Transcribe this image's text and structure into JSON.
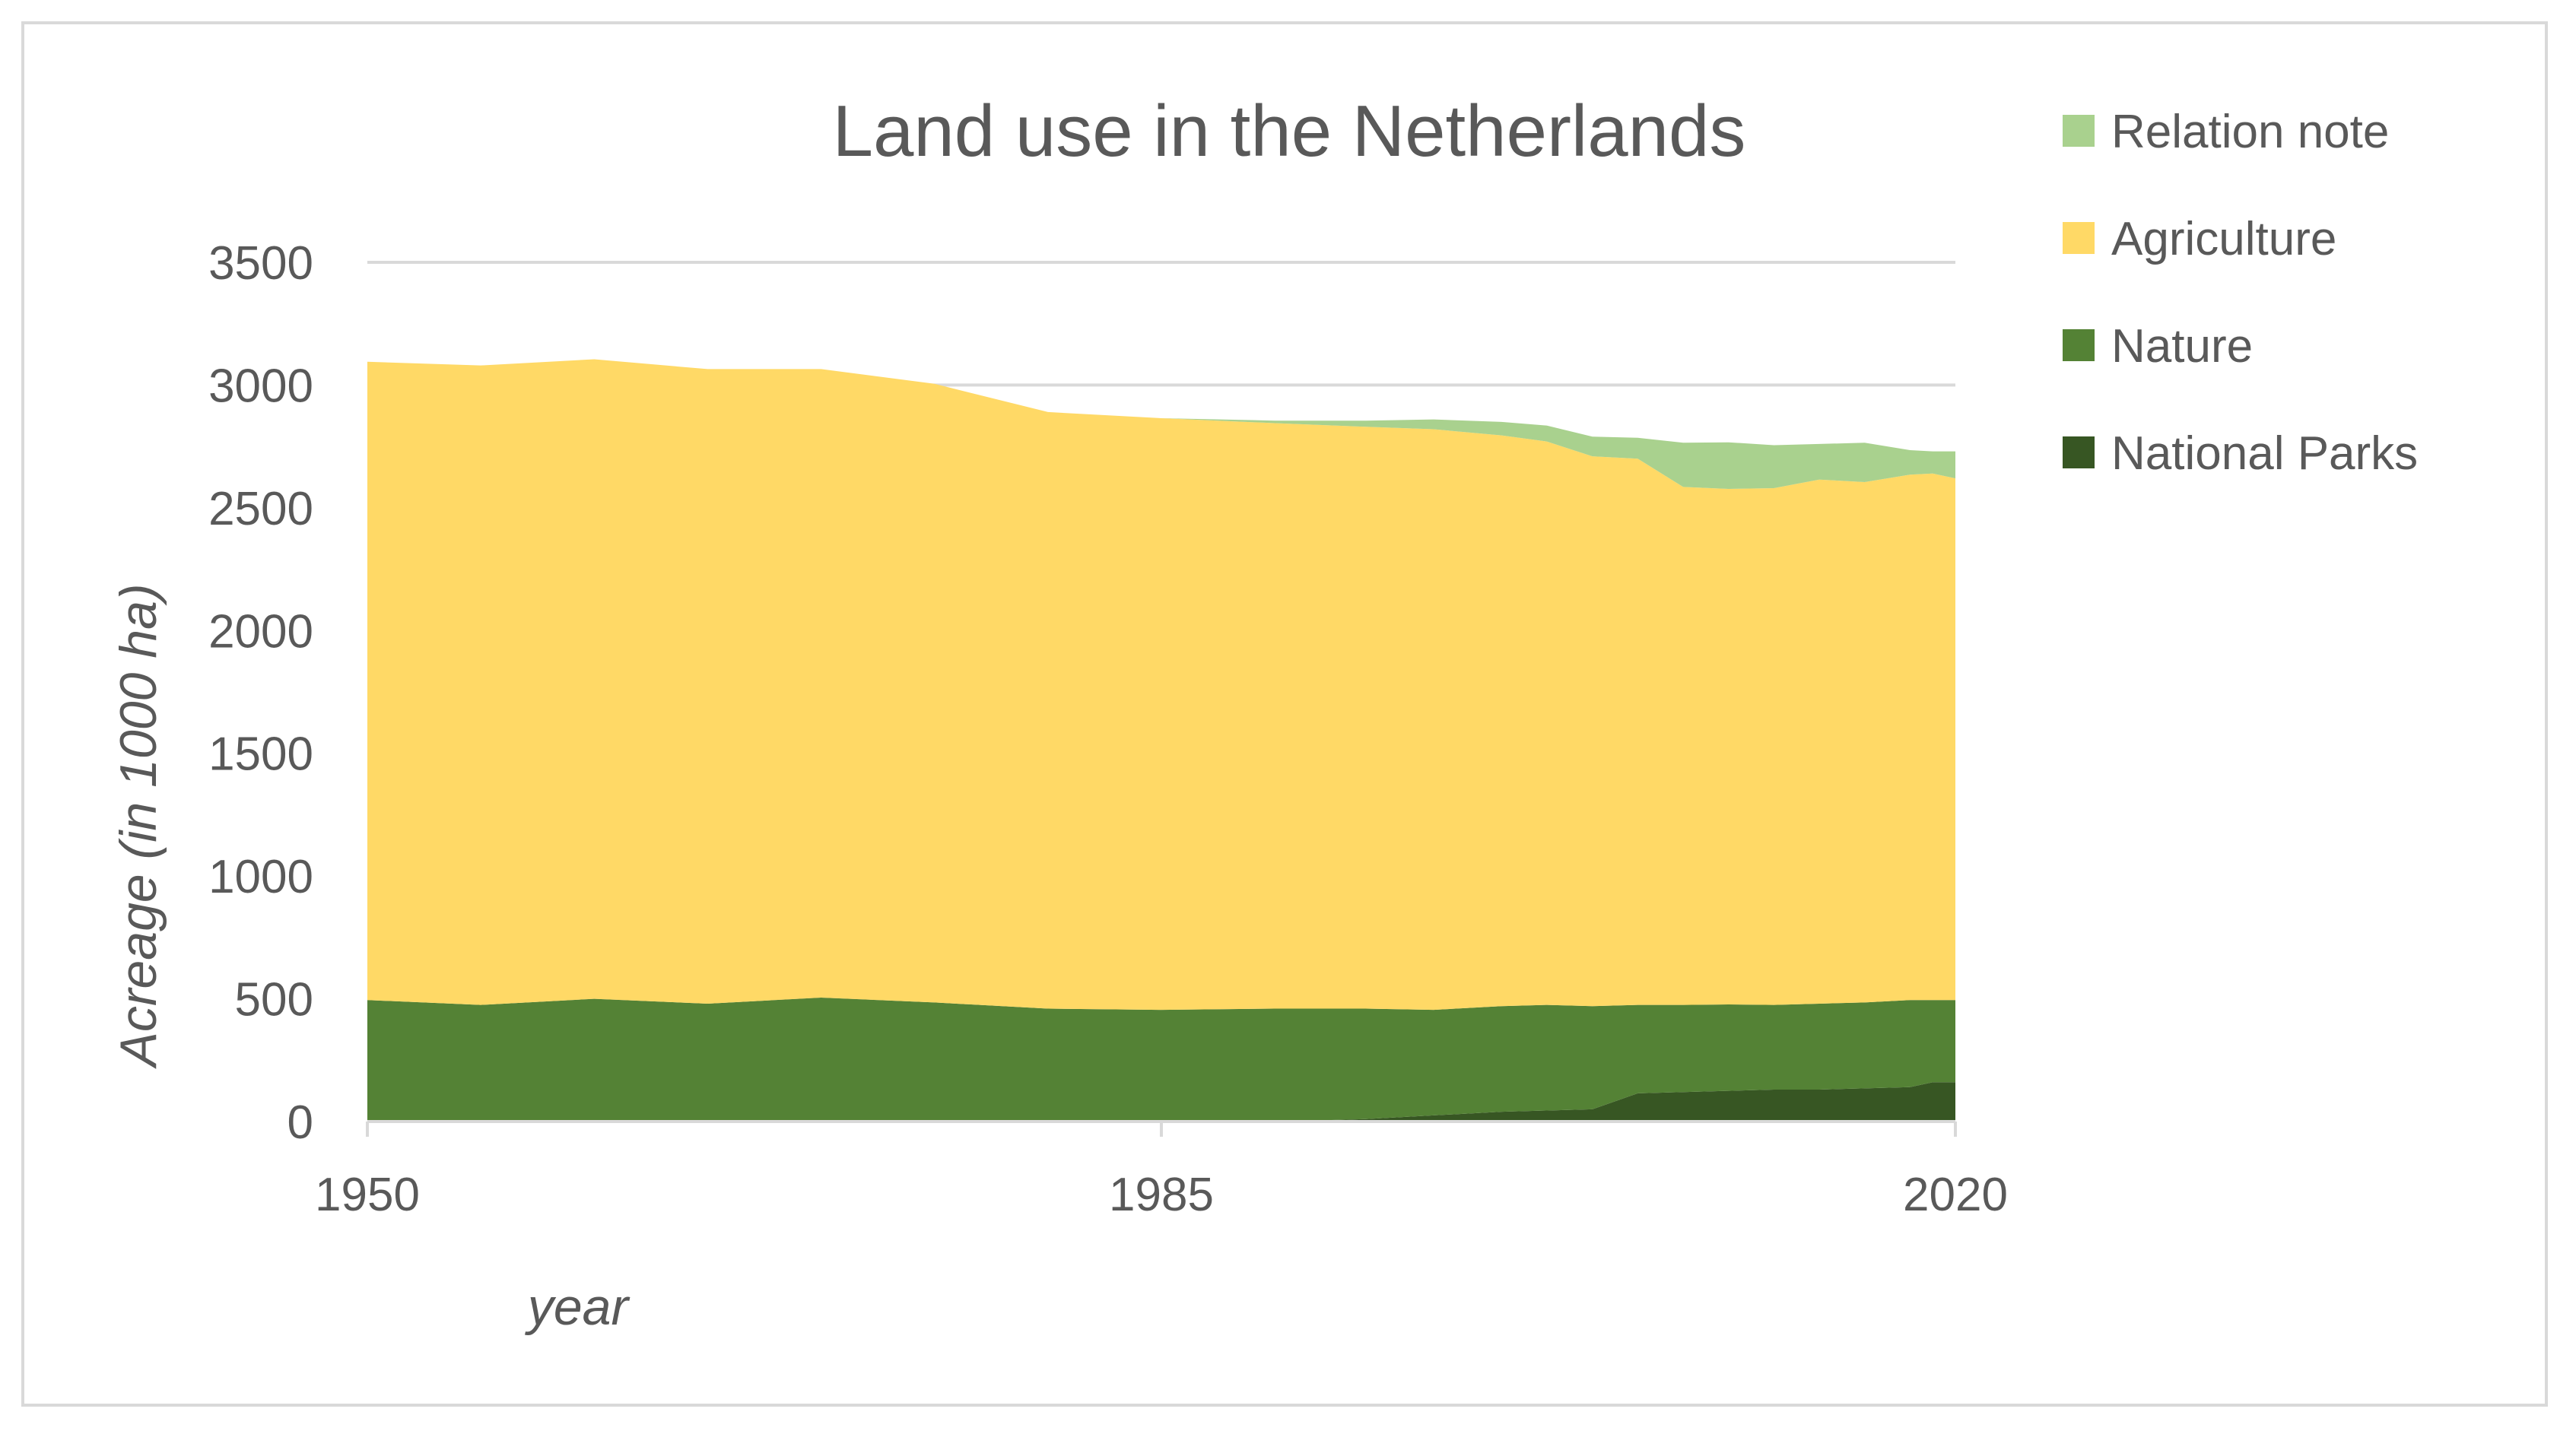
{
  "chart_data": {
    "type": "area",
    "stacked": true,
    "title": "Land use in the Netherlands",
    "xlabel": "year",
    "ylabel": "Acreage (in 1000 ha)",
    "xlim": [
      1950,
      2020
    ],
    "ylim": [
      0,
      3500
    ],
    "x_ticks": [
      1950,
      1985,
      2020
    ],
    "y_ticks": [
      0,
      500,
      1000,
      1500,
      2000,
      2500,
      3000,
      3500
    ],
    "grid": true,
    "legend_position": "right",
    "x": [
      1950,
      1955,
      1960,
      1965,
      1970,
      1975,
      1980,
      1985,
      1990,
      1994,
      1997,
      2000,
      2002,
      2004,
      2006,
      2008,
      2010,
      2012,
      2014,
      2016,
      2018,
      2019,
      2020
    ],
    "series": [
      {
        "name": "National Parks",
        "color": "#375623",
        "values": [
          0,
          0,
          0,
          0,
          0,
          0,
          0,
          0,
          0,
          10,
          25,
          40,
          45,
          50,
          115,
          120,
          125,
          130,
          130,
          135,
          140,
          160,
          160
        ]
      },
      {
        "name": "Nature",
        "color": "#548235",
        "values": [
          495,
          475,
          500,
          480,
          505,
          485,
          460,
          455,
          460,
          450,
          430,
          430,
          430,
          420,
          360,
          355,
          352,
          345,
          350,
          350,
          355,
          335,
          335
        ]
      },
      {
        "name": "Agriculture",
        "color": "#ffd966",
        "values": [
          2600,
          2605,
          2605,
          2585,
          2560,
          2520,
          2430,
          2410,
          2385,
          2370,
          2365,
          2325,
          2295,
          2240,
          2225,
          2110,
          2100,
          2105,
          2135,
          2120,
          2140,
          2145,
          2125
        ]
      },
      {
        "name": "Relation note",
        "color": "#a9d18e",
        "values": [
          0,
          0,
          0,
          0,
          0,
          0,
          0,
          0,
          10,
          25,
          40,
          55,
          65,
          80,
          85,
          180,
          190,
          175,
          145,
          160,
          100,
          90,
          110
        ]
      }
    ],
    "legend": [
      "Relation note",
      "Agriculture",
      "Nature",
      "National Parks"
    ]
  }
}
